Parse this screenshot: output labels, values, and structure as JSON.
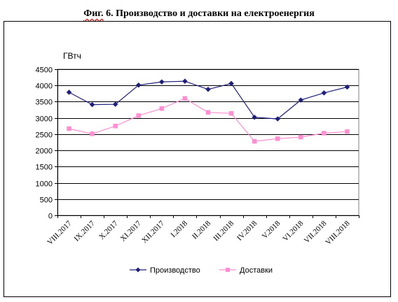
{
  "figure": {
    "title_prefix": "Фиг.",
    "title_rest": " 6. Производство и доставки на електроенергия"
  },
  "chart_data": {
    "type": "line",
    "title": "Фиг. 6. Производство и доставки на електроенергия",
    "ylabel": "ГВтч",
    "xlabel": "",
    "ylim": [
      0,
      4500
    ],
    "yticks": [
      0,
      500,
      1000,
      1500,
      2000,
      2500,
      3000,
      3500,
      4000,
      4500
    ],
    "grid": true,
    "legend_position": "bottom",
    "categories": [
      "VIII.2017",
      "IX.2017",
      "X.2017",
      "XI.2017",
      "XII.2017",
      "I.2018",
      "II.2018",
      "III.2018",
      "IV.2018",
      "V.2018",
      "VI.2018",
      "VII.2018",
      "VIII.2018"
    ],
    "series": [
      {
        "name": "Производство",
        "color": "#1f1f7a",
        "marker": "diamond",
        "values": [
          3790,
          3410,
          3420,
          4010,
          4110,
          4130,
          3880,
          4060,
          3020,
          2970,
          3550,
          3770,
          3950
        ]
      },
      {
        "name": "Доставки",
        "color": "#ff8fd0",
        "marker": "square",
        "values": [
          2670,
          2510,
          2750,
          3070,
          3290,
          3600,
          3170,
          3140,
          2280,
          2360,
          2410,
          2530,
          2580
        ]
      }
    ]
  }
}
